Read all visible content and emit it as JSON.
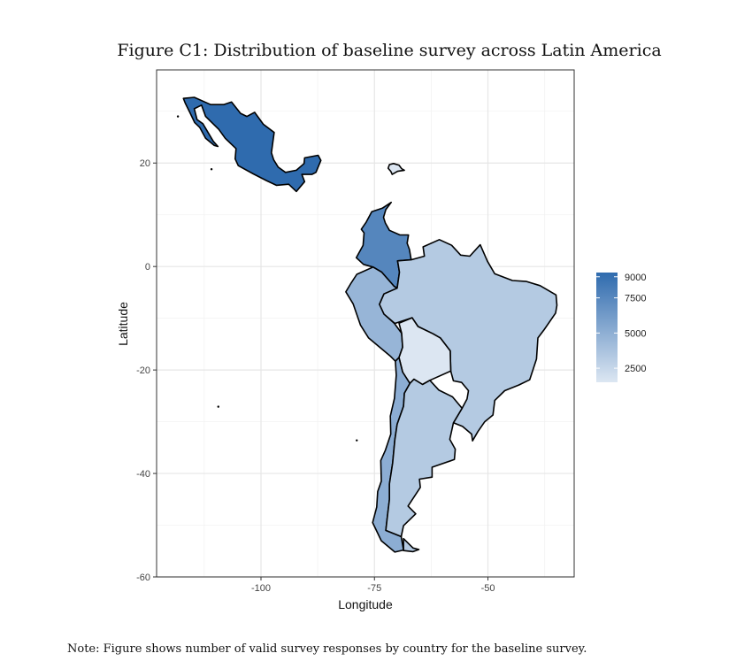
{
  "figure": {
    "title": "Figure C1: Distribution of baseline survey across Latin America",
    "note": "Note: Figure shows number of valid survey responses by country for the baseline survey."
  },
  "colors": {
    "panel_border": "#333333",
    "grid": "#e6e6e6",
    "country_stroke": "#000000",
    "scale_low": "#dce6f2",
    "scale_high": "#2f6bae"
  },
  "chart_data": {
    "type": "choropleth",
    "xlabel": "Longitude",
    "ylabel": "Latitude",
    "xlim": [
      -123,
      -31
    ],
    "ylim": [
      -60,
      38
    ],
    "x_ticks": [
      -100,
      -75,
      -50
    ],
    "x_tick_labels": [
      "-100",
      "-75",
      "-50"
    ],
    "y_ticks": [
      -60,
      -40,
      -20,
      0,
      20
    ],
    "y_tick_labels": [
      "-60",
      "-40",
      "-20",
      "0",
      "20"
    ],
    "grid": true,
    "legend": {
      "position": "right",
      "min": 1500,
      "max": 9300,
      "breaks": [
        9000,
        7500,
        5000,
        2500
      ],
      "break_labels": [
        "9000",
        "7500",
        "5000",
        "2500"
      ]
    },
    "countries": [
      {
        "name": "Mexico",
        "value": 9300,
        "coords": [
          [
            -117.1,
            32.5
          ],
          [
            -114.7,
            32.7
          ],
          [
            -111.1,
            31.3
          ],
          [
            -108.2,
            31.3
          ],
          [
            -106.5,
            31.8
          ],
          [
            -104.5,
            29.6
          ],
          [
            -103.1,
            29.0
          ],
          [
            -101.4,
            29.8
          ],
          [
            -99.5,
            27.5
          ],
          [
            -97.1,
            25.9
          ],
          [
            -97.7,
            22.0
          ],
          [
            -97.2,
            20.6
          ],
          [
            -96.2,
            19.2
          ],
          [
            -94.6,
            18.2
          ],
          [
            -92.2,
            18.6
          ],
          [
            -90.5,
            19.9
          ],
          [
            -90.4,
            21.0
          ],
          [
            -87.4,
            21.5
          ],
          [
            -86.8,
            20.5
          ],
          [
            -87.9,
            18.2
          ],
          [
            -88.8,
            17.8
          ],
          [
            -91.0,
            17.8
          ],
          [
            -90.4,
            16.4
          ],
          [
            -92.2,
            14.5
          ],
          [
            -93.9,
            15.9
          ],
          [
            -96.6,
            15.7
          ],
          [
            -98.8,
            16.6
          ],
          [
            -101.7,
            17.9
          ],
          [
            -105.0,
            19.5
          ],
          [
            -105.7,
            20.8
          ],
          [
            -105.5,
            22.8
          ],
          [
            -107.9,
            24.8
          ],
          [
            -109.3,
            26.5
          ],
          [
            -112.2,
            29.0
          ],
          [
            -113.1,
            31.2
          ],
          [
            -114.7,
            30.5
          ],
          [
            -114.1,
            28.4
          ],
          [
            -112.8,
            27.6
          ],
          [
            -110.5,
            24.2
          ],
          [
            -109.5,
            23.2
          ],
          [
            -110.3,
            23.4
          ],
          [
            -112.2,
            24.8
          ],
          [
            -113.5,
            26.9
          ],
          [
            -114.6,
            27.8
          ],
          [
            -115.7,
            29.8
          ],
          [
            -116.7,
            31.6
          ]
        ]
      },
      {
        "name": "Colombia",
        "value": 7600,
        "coords": [
          [
            -71.3,
            12.4
          ],
          [
            -72.5,
            11.0
          ],
          [
            -73.0,
            9.5
          ],
          [
            -72.6,
            8.4
          ],
          [
            -71.7,
            7.0
          ],
          [
            -69.4,
            6.1
          ],
          [
            -67.5,
            6.1
          ],
          [
            -67.8,
            4.5
          ],
          [
            -67.3,
            3.3
          ],
          [
            -66.9,
            1.3
          ],
          [
            -69.9,
            1.1
          ],
          [
            -69.5,
            -1.1
          ],
          [
            -70.0,
            -4.2
          ],
          [
            -70.7,
            -3.8
          ],
          [
            -73.4,
            -1.1
          ],
          [
            -75.3,
            -0.1
          ],
          [
            -77.4,
            0.4
          ],
          [
            -79.0,
            1.7
          ],
          [
            -77.5,
            4.1
          ],
          [
            -77.3,
            6.5
          ],
          [
            -77.9,
            7.2
          ],
          [
            -76.8,
            8.6
          ],
          [
            -75.6,
            10.6
          ],
          [
            -73.2,
            11.3
          ]
        ]
      },
      {
        "name": "Peru",
        "value": 4600,
        "coords": [
          [
            -75.3,
            -0.1
          ],
          [
            -73.4,
            -1.1
          ],
          [
            -70.7,
            -3.8
          ],
          [
            -70.0,
            -4.2
          ],
          [
            -72.9,
            -5.3
          ],
          [
            -73.9,
            -7.3
          ],
          [
            -72.5,
            -9.5
          ],
          [
            -70.6,
            -11.0
          ],
          [
            -69.0,
            -12.9
          ],
          [
            -68.8,
            -15.6
          ],
          [
            -69.6,
            -17.6
          ],
          [
            -70.4,
            -18.3
          ],
          [
            -71.4,
            -17.4
          ],
          [
            -76.3,
            -13.8
          ],
          [
            -78.1,
            -11.3
          ],
          [
            -79.7,
            -7.2
          ],
          [
            -81.3,
            -4.9
          ],
          [
            -80.3,
            -3.4
          ],
          [
            -78.9,
            -1.5
          ]
        ]
      },
      {
        "name": "Brazil",
        "value": 3300,
        "coords": [
          [
            -60.7,
            5.2
          ],
          [
            -58.0,
            4.1
          ],
          [
            -56.0,
            2.2
          ],
          [
            -54.0,
            2.0
          ],
          [
            -51.7,
            4.2
          ],
          [
            -50.1,
            1.0
          ],
          [
            -48.5,
            -1.4
          ],
          [
            -44.6,
            -2.7
          ],
          [
            -41.5,
            -2.9
          ],
          [
            -38.5,
            -3.7
          ],
          [
            -35.0,
            -5.5
          ],
          [
            -34.8,
            -7.5
          ],
          [
            -35.1,
            -9.0
          ],
          [
            -37.6,
            -12.2
          ],
          [
            -39.0,
            -13.8
          ],
          [
            -39.3,
            -17.9
          ],
          [
            -40.8,
            -21.9
          ],
          [
            -43.2,
            -22.9
          ],
          [
            -46.3,
            -24.0
          ],
          [
            -48.5,
            -25.9
          ],
          [
            -48.9,
            -28.7
          ],
          [
            -50.7,
            -30.0
          ],
          [
            -52.2,
            -31.9
          ],
          [
            -53.4,
            -33.7
          ],
          [
            -53.6,
            -32.4
          ],
          [
            -55.6,
            -30.9
          ],
          [
            -57.6,
            -30.2
          ],
          [
            -55.7,
            -27.4
          ],
          [
            -54.6,
            -25.6
          ],
          [
            -54.3,
            -24.0
          ],
          [
            -55.8,
            -22.4
          ],
          [
            -57.6,
            -22.1
          ],
          [
            -58.2,
            -20.2
          ],
          [
            -58.3,
            -16.3
          ],
          [
            -60.5,
            -13.8
          ],
          [
            -62.1,
            -13.0
          ],
          [
            -65.4,
            -11.6
          ],
          [
            -66.7,
            -9.9
          ],
          [
            -70.5,
            -11.0
          ],
          [
            -72.9,
            -9.2
          ],
          [
            -73.9,
            -7.3
          ],
          [
            -72.9,
            -5.3
          ],
          [
            -70.0,
            -4.2
          ],
          [
            -69.5,
            -1.1
          ],
          [
            -69.9,
            1.1
          ],
          [
            -66.9,
            1.3
          ],
          [
            -64.0,
            2.0
          ],
          [
            -64.3,
            3.8
          ]
        ]
      },
      {
        "name": "Bolivia",
        "value": 1500,
        "coords": [
          [
            -69.6,
            -10.95
          ],
          [
            -66.7,
            -9.9
          ],
          [
            -65.4,
            -11.6
          ],
          [
            -62.1,
            -13.0
          ],
          [
            -60.5,
            -13.8
          ],
          [
            -58.3,
            -16.3
          ],
          [
            -58.2,
            -20.2
          ],
          [
            -62.8,
            -22.0
          ],
          [
            -64.4,
            -22.8
          ],
          [
            -66.3,
            -21.8
          ],
          [
            -67.2,
            -22.6
          ],
          [
            -68.8,
            -20.4
          ],
          [
            -69.6,
            -17.6
          ],
          [
            -68.8,
            -15.6
          ],
          [
            -69.0,
            -12.9
          ]
        ]
      },
      {
        "name": "Chile",
        "value": 5100,
        "coords": [
          [
            -70.4,
            -18.3
          ],
          [
            -69.6,
            -17.6
          ],
          [
            -68.8,
            -20.4
          ],
          [
            -67.2,
            -22.6
          ],
          [
            -68.4,
            -24.5
          ],
          [
            -68.6,
            -27.0
          ],
          [
            -70.0,
            -30.5
          ],
          [
            -70.5,
            -33.5
          ],
          [
            -71.0,
            -38.0
          ],
          [
            -71.7,
            -42.0
          ],
          [
            -71.7,
            -45.0
          ],
          [
            -72.1,
            -48.0
          ],
          [
            -72.5,
            -51.0
          ],
          [
            -69.1,
            -52.2
          ],
          [
            -68.6,
            -54.8
          ],
          [
            -70.5,
            -55.2
          ],
          [
            -73.5,
            -53.0
          ],
          [
            -75.4,
            -49.5
          ],
          [
            -74.5,
            -46.5
          ],
          [
            -74.3,
            -43.5
          ],
          [
            -73.5,
            -41.5
          ],
          [
            -73.6,
            -37.5
          ],
          [
            -72.6,
            -35.5
          ],
          [
            -71.4,
            -32.4
          ],
          [
            -71.5,
            -28.9
          ],
          [
            -70.6,
            -25.5
          ],
          [
            -70.2,
            -21.0
          ]
        ]
      },
      {
        "name": "Argentina",
        "value": 3300,
        "coords": [
          [
            -66.3,
            -21.8
          ],
          [
            -64.4,
            -22.8
          ],
          [
            -62.8,
            -22.0
          ],
          [
            -60.8,
            -23.9
          ],
          [
            -57.8,
            -25.2
          ],
          [
            -55.7,
            -27.4
          ],
          [
            -57.6,
            -30.2
          ],
          [
            -58.4,
            -33.4
          ],
          [
            -57.2,
            -35.3
          ],
          [
            -57.4,
            -37.3
          ],
          [
            -62.3,
            -38.8
          ],
          [
            -62.3,
            -40.7
          ],
          [
            -65.1,
            -41.1
          ],
          [
            -64.9,
            -42.7
          ],
          [
            -67.6,
            -46.3
          ],
          [
            -65.9,
            -47.8
          ],
          [
            -68.6,
            -50.1
          ],
          [
            -69.1,
            -52.2
          ],
          [
            -72.5,
            -51.0
          ],
          [
            -72.1,
            -48.0
          ],
          [
            -71.7,
            -45.0
          ],
          [
            -71.7,
            -42.0
          ],
          [
            -71.0,
            -38.0
          ],
          [
            -70.5,
            -33.5
          ],
          [
            -70.0,
            -30.5
          ],
          [
            -68.6,
            -27.0
          ],
          [
            -68.4,
            -24.5
          ],
          [
            -67.2,
            -22.6
          ]
        ]
      },
      {
        "name": "Tierra del Fuego (Argentina)",
        "value": 3300,
        "coords": [
          [
            -68.6,
            -52.6
          ],
          [
            -68.6,
            -54.9
          ],
          [
            -66.5,
            -55.1
          ],
          [
            -65.2,
            -54.7
          ],
          [
            -66.5,
            -54.4
          ]
        ]
      },
      {
        "name": "Dominican Republic",
        "value": 1500,
        "coords": [
          [
            -71.7,
            19.7
          ],
          [
            -70.8,
            19.9
          ],
          [
            -69.6,
            19.6
          ],
          [
            -69.0,
            18.9
          ],
          [
            -68.4,
            18.6
          ],
          [
            -69.9,
            18.4
          ],
          [
            -71.1,
            17.8
          ],
          [
            -71.4,
            18.4
          ],
          [
            -72.0,
            19.0
          ]
        ]
      }
    ],
    "islands": [
      {
        "name": "Isla Guadalupe",
        "lon": -118.3,
        "lat": 29.0
      },
      {
        "name": "Isla Socorro",
        "lon": -110.9,
        "lat": 18.8
      },
      {
        "name": "Isla de Pascua",
        "lon": -109.4,
        "lat": -27.1
      },
      {
        "name": "Islas Juan Fernandez",
        "lon": -78.9,
        "lat": -33.6
      }
    ]
  }
}
